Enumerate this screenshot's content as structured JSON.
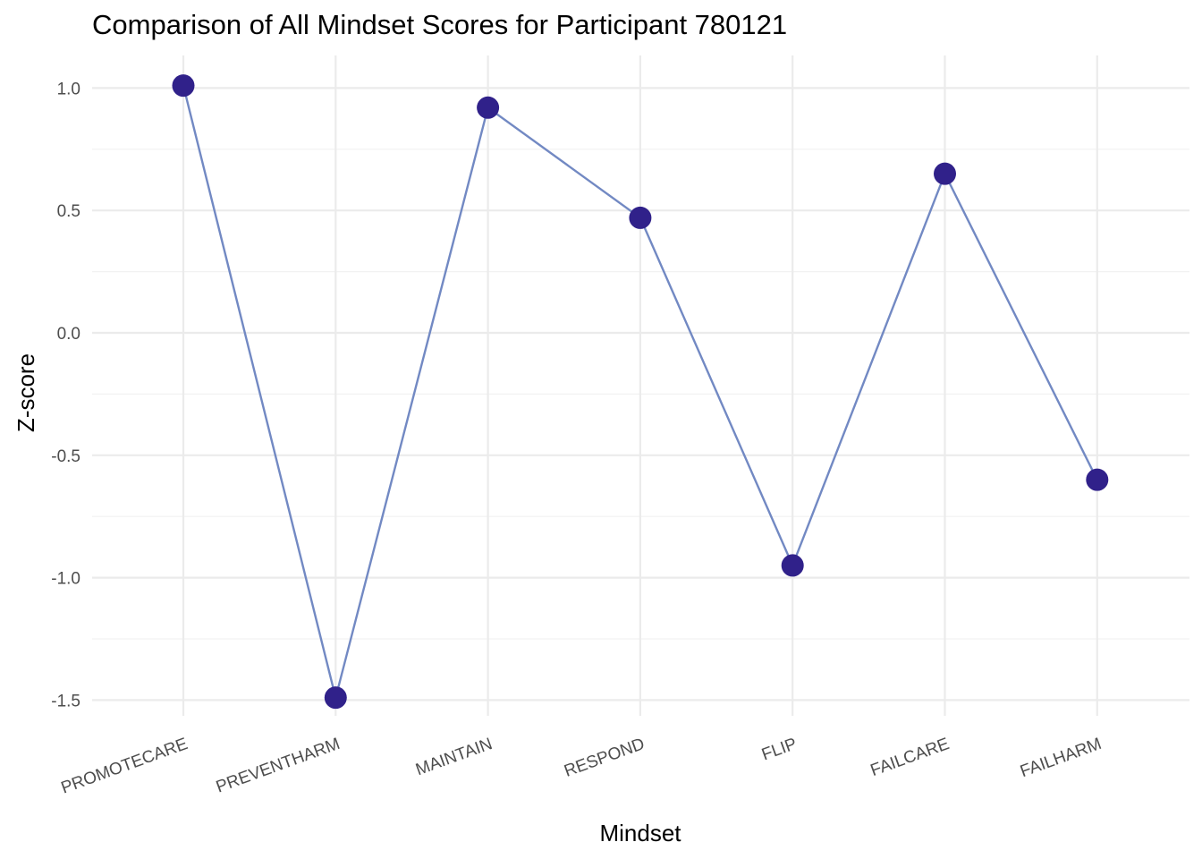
{
  "chart_data": {
    "type": "line",
    "title": "Comparison of All Mindset Scores for Participant 780121",
    "xlabel": "Mindset",
    "ylabel": "Z-score",
    "categories": [
      "PROMOTECARE",
      "PREVENTHARM",
      "MAINTAIN",
      "RESPOND",
      "FLIP",
      "FAILCARE",
      "FAILHARM"
    ],
    "series": [
      {
        "values": [
          1.01,
          -1.49,
          0.92,
          0.47,
          -0.95,
          0.65,
          -0.6
        ]
      }
    ],
    "ylim": [
      -1.62,
      1.12
    ],
    "yticks": [
      1.0,
      0.5,
      0.0,
      -0.5,
      -1.0,
      -1.5
    ],
    "ytick_labels": [
      "1.0",
      "0.5",
      "0.0",
      "-0.5",
      "-1.0",
      "-1.5"
    ],
    "grid": true,
    "legend": "none",
    "colors": {
      "line": "#7289c3",
      "point": "#30218a",
      "grid": "#ebebeb"
    }
  }
}
